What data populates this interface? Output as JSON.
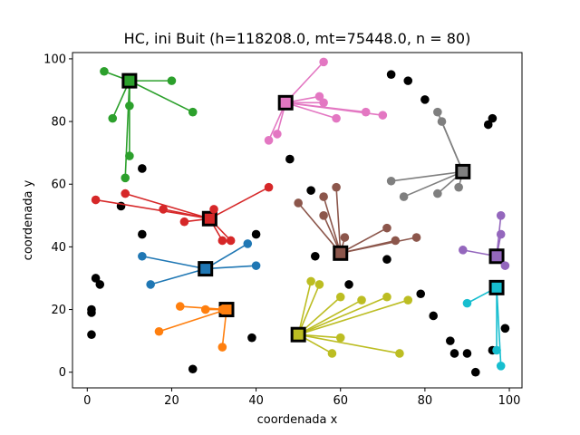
{
  "chart_data": {
    "type": "scatter",
    "title": "HC, ini Buit (h=118208.0, mt=75448.0, n = 80)",
    "xlabel": "coordenada x",
    "ylabel": "coordenada y",
    "xlim": [
      -3.5,
      103
    ],
    "ylim": [
      -5,
      102
    ],
    "xticks": [
      0,
      20,
      40,
      60,
      80,
      100
    ],
    "yticks": [
      0,
      20,
      40,
      60,
      80,
      100
    ],
    "grid": false,
    "legend": "none",
    "unassigned_color": "#000000",
    "unassigned_points": [
      [
        13,
        65
      ],
      [
        8,
        53
      ],
      [
        13,
        44
      ],
      [
        2,
        30
      ],
      [
        3,
        28
      ],
      [
        1,
        20
      ],
      [
        1,
        19
      ],
      [
        1,
        12
      ],
      [
        25,
        1
      ],
      [
        39,
        11
      ],
      [
        40,
        44
      ],
      [
        48,
        68
      ],
      [
        53,
        58
      ],
      [
        54,
        37
      ],
      [
        62,
        28
      ],
      [
        71,
        36
      ],
      [
        72,
        95
      ],
      [
        76,
        93
      ],
      [
        80,
        87
      ],
      [
        79,
        25
      ],
      [
        82,
        18
      ],
      [
        86,
        10
      ],
      [
        87,
        6
      ],
      [
        90,
        6
      ],
      [
        92,
        0
      ],
      [
        95,
        79
      ],
      [
        96,
        81
      ],
      [
        96,
        7
      ],
      [
        99,
        14
      ]
    ],
    "clusters": [
      {
        "color": "#2ca02c",
        "center": [
          10,
          93
        ],
        "points": [
          [
            4,
            96
          ],
          [
            20,
            93
          ],
          [
            25,
            83
          ],
          [
            6,
            81
          ],
          [
            10,
            85
          ],
          [
            10,
            69
          ],
          [
            9,
            62
          ]
        ]
      },
      {
        "color": "#e377c2",
        "center": [
          47,
          86
        ],
        "points": [
          [
            56,
            99
          ],
          [
            55,
            88
          ],
          [
            56,
            86
          ],
          [
            59,
            81
          ],
          [
            66,
            83
          ],
          [
            70,
            82
          ],
          [
            43,
            74
          ],
          [
            45,
            76
          ]
        ]
      },
      {
        "color": "#7f7f7f",
        "center": [
          89,
          64
        ],
        "points": [
          [
            83,
            83
          ],
          [
            84,
            80
          ],
          [
            72,
            61
          ],
          [
            75,
            56
          ],
          [
            83,
            57
          ],
          [
            88,
            59
          ]
        ]
      },
      {
        "color": "#d62728",
        "center": [
          29,
          49
        ],
        "points": [
          [
            2,
            55
          ],
          [
            9,
            57
          ],
          [
            18,
            52
          ],
          [
            23,
            48
          ],
          [
            30,
            52
          ],
          [
            32,
            42
          ],
          [
            34,
            42
          ],
          [
            43,
            59
          ]
        ]
      },
      {
        "color": "#8c564b",
        "center": [
          60,
          38
        ],
        "points": [
          [
            50,
            54
          ],
          [
            56,
            56
          ],
          [
            59,
            59
          ],
          [
            56,
            50
          ],
          [
            61,
            43
          ],
          [
            71,
            46
          ],
          [
            73,
            42
          ],
          [
            78,
            43
          ]
        ]
      },
      {
        "color": "#9467bd",
        "center": [
          97,
          37
        ],
        "points": [
          [
            98,
            50
          ],
          [
            98,
            44
          ],
          [
            89,
            39
          ],
          [
            99,
            34
          ]
        ]
      },
      {
        "color": "#1f77b4",
        "center": [
          28,
          33
        ],
        "points": [
          [
            13,
            37
          ],
          [
            15,
            28
          ],
          [
            38,
            41
          ],
          [
            40,
            34
          ]
        ]
      },
      {
        "color": "#ff7f0e",
        "center": [
          33,
          20
        ],
        "points": [
          [
            22,
            21
          ],
          [
            28,
            20
          ],
          [
            32,
            20
          ],
          [
            17,
            13
          ],
          [
            32,
            8
          ]
        ]
      },
      {
        "color": "#bcbd22",
        "center": [
          50,
          12
        ],
        "points": [
          [
            53,
            29
          ],
          [
            55,
            28
          ],
          [
            60,
            24
          ],
          [
            60,
            11
          ],
          [
            58,
            6
          ],
          [
            65,
            23
          ],
          [
            71,
            24
          ],
          [
            76,
            23
          ],
          [
            74,
            6
          ]
        ]
      },
      {
        "color": "#17becf",
        "center": [
          97,
          27
        ],
        "points": [
          [
            90,
            22
          ],
          [
            97,
            7
          ],
          [
            98,
            2
          ]
        ]
      }
    ]
  }
}
